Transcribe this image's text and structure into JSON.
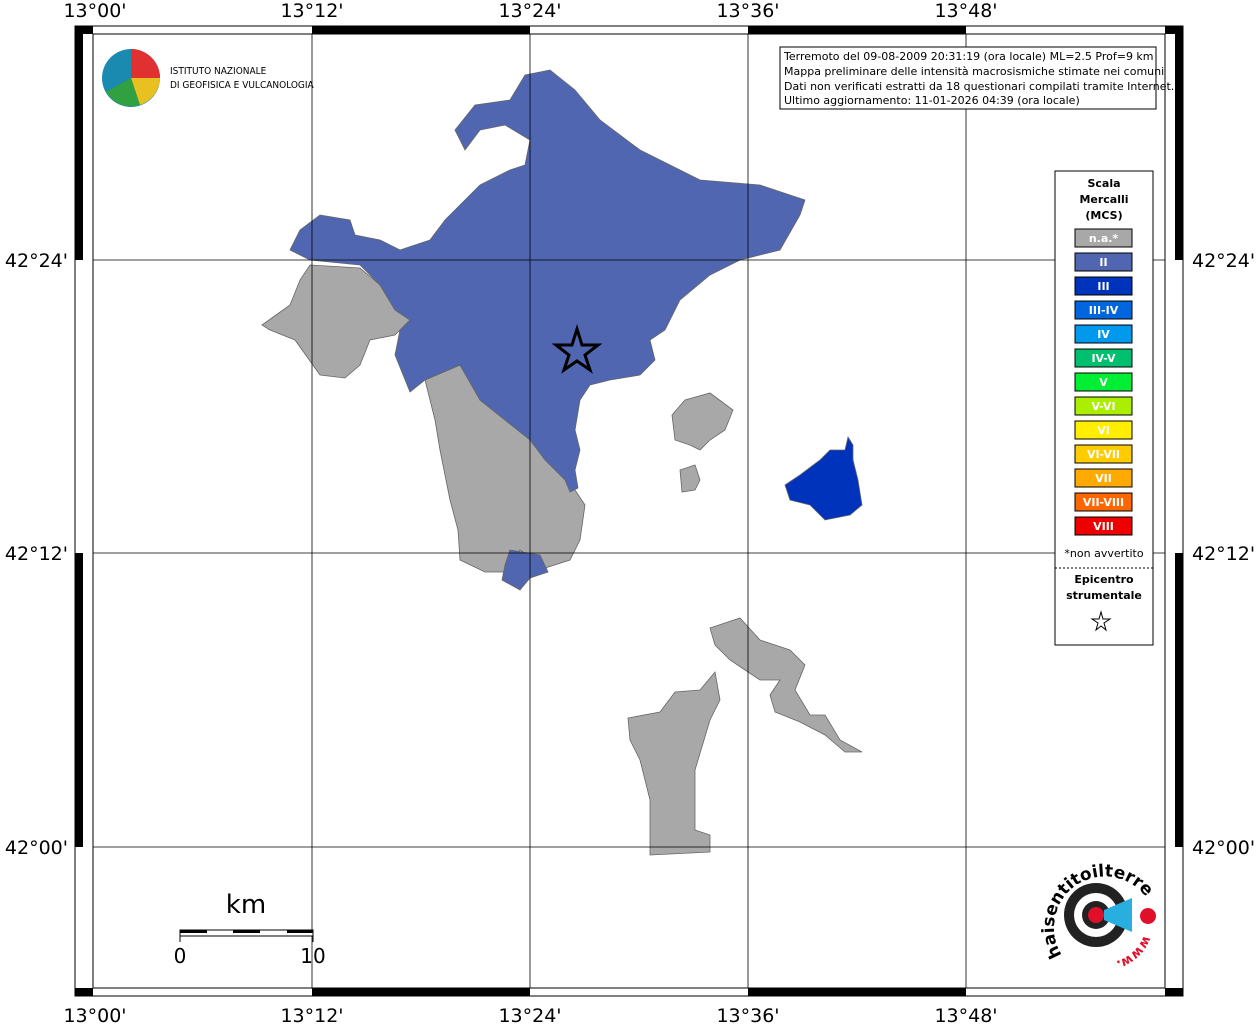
{
  "map": {
    "top_labels": [
      "13°00'",
      "13°12'",
      "13°24'",
      "13°36'",
      "13°48'"
    ],
    "bottom_labels": [
      "13°00'",
      "13°12'",
      "13°24'",
      "13°36'",
      "13°48'"
    ],
    "left_labels": [
      "42°24'",
      "42°12'",
      "42°00'"
    ],
    "right_labels": [
      "42°24'",
      "42°12'",
      "42°00'"
    ]
  },
  "info": [
    "Terremoto del 09-08-2009 20:31:19 (ora locale) ML=2.5 Prof=9 km",
    "Mappa preliminare delle intensità macrosismiche stimate nei comuni",
    "Dati non verificati estratti da 18 questionari compilati tramite Internet.",
    "Ultimo aggiornamento: 11-01-2026 04:39 (ora locale)"
  ],
  "logo": {
    "line1": "ISTITUTO NAZIONALE",
    "line2": "DI GEOFISICA E VULCANOLOGIA"
  },
  "legend": {
    "title": [
      "Scala",
      "Mercalli",
      "(MCS)"
    ],
    "items": [
      {
        "label": "n.a.*",
        "color": "#a8a8a8"
      },
      {
        "label": "II",
        "color": "#5066b0"
      },
      {
        "label": "III",
        "color": "#0033bb"
      },
      {
        "label": "III-IV",
        "color": "#0066dd"
      },
      {
        "label": "IV",
        "color": "#0099ee"
      },
      {
        "label": "IV-V",
        "color": "#00c070"
      },
      {
        "label": "V",
        "color": "#00ee33"
      },
      {
        "label": "V-VI",
        "color": "#aaee00"
      },
      {
        "label": "VI",
        "color": "#ffee00"
      },
      {
        "label": "VI-VII",
        "color": "#ffcc00"
      },
      {
        "label": "VII",
        "color": "#ffaa00"
      },
      {
        "label": "VII-VIII",
        "color": "#ff6600"
      },
      {
        "label": "VIII",
        "color": "#ee0000"
      }
    ],
    "note": "*non avvertito",
    "epicenter": [
      "Epicentro",
      "strumentale"
    ]
  },
  "scale_bar": {
    "unit": "km",
    "start": "0",
    "end": "10"
  },
  "site_logo": {
    "name": "haisentitoilterremoto.it",
    "prefix": "www."
  }
}
